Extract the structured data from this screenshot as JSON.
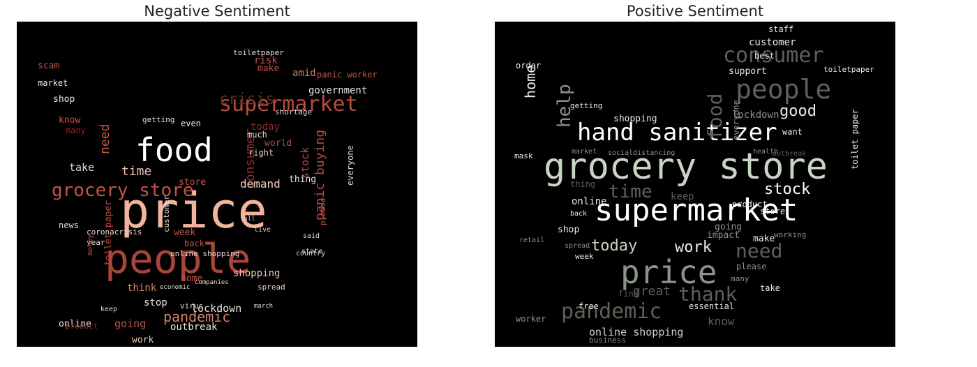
{
  "chart_data": [
    {
      "type": "wordcloud",
      "title": "Negative Sentiment",
      "background": "#000000",
      "palette": [
        "#f2b49a",
        "#d9826b",
        "#b94c3f",
        "#8c2f2a",
        "#6b2a26",
        "#e8d6cf"
      ],
      "words": [
        {
          "text": "price",
          "size": 70,
          "color": "#f2b49a"
        },
        {
          "text": "people",
          "size": 58,
          "color": "#a8453a"
        },
        {
          "text": "food",
          "size": 46,
          "color": "#ffffff"
        },
        {
          "text": "supermarket",
          "size": 30,
          "color": "#b94c3f"
        },
        {
          "text": "grocery store",
          "size": 26,
          "color": "#c0554a"
        },
        {
          "text": "pandemic",
          "size": 20,
          "color": "#d9826b"
        },
        {
          "text": "panic buying",
          "size": 18,
          "color": "#b94c3f"
        },
        {
          "text": "crisis",
          "size": 22,
          "color": "#5a2a26"
        },
        {
          "text": "consumer",
          "size": 18,
          "color": "#8c2f2a"
        },
        {
          "text": "need",
          "size": 18,
          "color": "#c0554a"
        },
        {
          "text": "time",
          "size": 18,
          "color": "#e8c0b0"
        },
        {
          "text": "demand",
          "size": 16,
          "color": "#f2d0c2"
        },
        {
          "text": "lockdown",
          "size": 15,
          "color": "#e8e0dc"
        },
        {
          "text": "shopping",
          "size": 14,
          "color": "#f0c8b4"
        },
        {
          "text": "government",
          "size": 14,
          "color": "#e8e0dc"
        },
        {
          "text": "going",
          "size": 15,
          "color": "#c0554a"
        },
        {
          "text": "stock",
          "size": 15,
          "color": "#b94c3f"
        },
        {
          "text": "take",
          "size": 15,
          "color": "#e8d6cf"
        },
        {
          "text": "online",
          "size": 13,
          "color": "#f0e8e4"
        },
        {
          "text": "outbreak",
          "size": 14,
          "color": "#f0e8e4"
        },
        {
          "text": "work",
          "size": 13,
          "color": "#f0c8b4"
        },
        {
          "text": "stop",
          "size": 14,
          "color": "#f0e8e4"
        },
        {
          "text": "think",
          "size": 14,
          "color": "#d9826b"
        },
        {
          "text": "home",
          "size": 13,
          "color": "#c0554a"
        },
        {
          "text": "week",
          "size": 13,
          "color": "#c0554a"
        },
        {
          "text": "back",
          "size": 12,
          "color": "#c0554a"
        },
        {
          "text": "customer",
          "size": 11,
          "color": "#e8d6cf"
        },
        {
          "text": "online shopping",
          "size": 11,
          "color": "#e8d6cf"
        },
        {
          "text": "spread",
          "size": 11,
          "color": "#e8d6cf"
        },
        {
          "text": "thing",
          "size": 13,
          "color": "#e8e0dc"
        },
        {
          "text": "today",
          "size": 14,
          "color": "#8c2f2a"
        },
        {
          "text": "world",
          "size": 13,
          "color": "#b94c3f"
        },
        {
          "text": "right",
          "size": 12,
          "color": "#e8d6cf"
        },
        {
          "text": "much",
          "size": 12,
          "color": "#e8d6cf"
        },
        {
          "text": "store",
          "size": 13,
          "color": "#c0554a"
        },
        {
          "text": "even",
          "size": 12,
          "color": "#f0e8e4"
        },
        {
          "text": "getting",
          "size": 11,
          "color": "#e8d6cf"
        },
        {
          "text": "shortage",
          "size": 11,
          "color": "#e8d6cf"
        },
        {
          "text": "toilet paper",
          "size": 13,
          "color": "#b94c3f"
        },
        {
          "text": "coronacrisis",
          "size": 11,
          "color": "#e8d6cf"
        },
        {
          "text": "news",
          "size": 12,
          "color": "#e8d6cf"
        },
        {
          "text": "year",
          "size": 11,
          "color": "#e8d6cf"
        },
        {
          "text": "money",
          "size": 10,
          "color": "#c0554a"
        },
        {
          "text": "shop",
          "size": 13,
          "color": "#f0e8e4"
        },
        {
          "text": "know",
          "size": 13,
          "color": "#c0554a"
        },
        {
          "text": "many",
          "size": 12,
          "color": "#8c2f2a"
        },
        {
          "text": "scam",
          "size": 13,
          "color": "#c0554a"
        },
        {
          "text": "market",
          "size": 12,
          "color": "#f0e8e4"
        },
        {
          "text": "risk",
          "size": 14,
          "color": "#c0554a"
        },
        {
          "text": "amid",
          "size": 14,
          "color": "#d9826b"
        },
        {
          "text": "make",
          "size": 13,
          "color": "#c0554a"
        },
        {
          "text": "panic worker",
          "size": 12,
          "color": "#c0554a"
        },
        {
          "text": "toiletpaper",
          "size": 11,
          "color": "#e8e0dc"
        },
        {
          "text": "everyone",
          "size": 12,
          "color": "#e8d6cf"
        },
        {
          "text": "please",
          "size": 11,
          "color": "#c0554a"
        },
        {
          "text": "said",
          "size": 10,
          "color": "#e8d6cf"
        },
        {
          "text": "state",
          "size": 10,
          "color": "#e8d6cf"
        },
        {
          "text": "country",
          "size": 10,
          "color": "#e8d6cf"
        },
        {
          "text": "live",
          "size": 10,
          "color": "#f0c8b4"
        },
        {
          "text": "full",
          "size": 9,
          "color": "#e8d6cf"
        },
        {
          "text": "product",
          "size": 11,
          "color": "#8c2f2a"
        },
        {
          "text": "virus",
          "size": 11,
          "color": "#e8d6cf"
        },
        {
          "text": "keep",
          "size": 10,
          "color": "#e8d6cf"
        },
        {
          "text": "economic",
          "size": 9,
          "color": "#e8d6cf"
        },
        {
          "text": "companies",
          "size": 9,
          "color": "#e8d6cf"
        },
        {
          "text": "march",
          "size": 9,
          "color": "#e8d6cf"
        }
      ]
    },
    {
      "type": "wordcloud",
      "title": "Positive Sentiment",
      "background": "#000000",
      "palette": [
        "#ffffff",
        "#e8eee4",
        "#c8d4c4",
        "#8a9488",
        "#5a6258"
      ],
      "words": [
        {
          "text": "grocery store",
          "size": 52,
          "color": "#c8d4c4"
        },
        {
          "text": "supermarket",
          "size": 44,
          "color": "#ffffff"
        },
        {
          "text": "price",
          "size": 46,
          "color": "#8a9488"
        },
        {
          "text": "hand sanitizer",
          "size": 34,
          "color": "#ffffff"
        },
        {
          "text": "people",
          "size": 38,
          "color": "#5a6258"
        },
        {
          "text": "consumer",
          "size": 30,
          "color": "#5a6258"
        },
        {
          "text": "pandemic",
          "size": 30,
          "color": "#5a6258"
        },
        {
          "text": "help",
          "size": 26,
          "color": "#8a9488"
        },
        {
          "text": "food",
          "size": 28,
          "color": "#5a6258"
        },
        {
          "text": "time",
          "size": 26,
          "color": "#5a6258"
        },
        {
          "text": "thank",
          "size": 28,
          "color": "#5a6258"
        },
        {
          "text": "need",
          "size": 28,
          "color": "#5a6258"
        },
        {
          "text": "good",
          "size": 22,
          "color": "#e8eee4"
        },
        {
          "text": "home",
          "size": 20,
          "color": "#e8eee4"
        },
        {
          "text": "stock",
          "size": 22,
          "color": "#ffffff"
        },
        {
          "text": "today",
          "size": 22,
          "color": "#c8d4c4"
        },
        {
          "text": "work",
          "size": 22,
          "color": "#e8eee4"
        },
        {
          "text": "online shopping",
          "size": 15,
          "color": "#c8d4c4"
        },
        {
          "text": "great",
          "size": 18,
          "color": "#5a6258"
        },
        {
          "text": "know",
          "size": 16,
          "color": "#5a6258"
        },
        {
          "text": "lockdown",
          "size": 14,
          "color": "#8a9488"
        },
        {
          "text": "customer",
          "size": 14,
          "color": "#e8eee4"
        },
        {
          "text": "support",
          "size": 13,
          "color": "#e8eee4"
        },
        {
          "text": "shopping",
          "size": 13,
          "color": "#e8eee4"
        },
        {
          "text": "online",
          "size": 14,
          "color": "#e8eee4"
        },
        {
          "text": "shop",
          "size": 13,
          "color": "#e8eee4"
        },
        {
          "text": "essential",
          "size": 12,
          "color": "#e8eee4"
        },
        {
          "text": "make",
          "size": 13,
          "color": "#e8eee4"
        },
        {
          "text": "going",
          "size": 13,
          "color": "#8a9488"
        },
        {
          "text": "impact",
          "size": 13,
          "color": "#8a9488"
        },
        {
          "text": "product",
          "size": 12,
          "color": "#e8eee4"
        },
        {
          "text": "keep",
          "size": 14,
          "color": "#5a6258"
        },
        {
          "text": "store",
          "size": 12,
          "color": "#e8eee4"
        },
        {
          "text": "want",
          "size": 12,
          "color": "#e8eee4"
        },
        {
          "text": "toilet paper",
          "size": 12,
          "color": "#e8eee4"
        },
        {
          "text": "everyone",
          "size": 12,
          "color": "#8a9488"
        },
        {
          "text": "order",
          "size": 12,
          "color": "#e8eee4"
        },
        {
          "text": "best",
          "size": 12,
          "color": "#e8eee4"
        },
        {
          "text": "staff",
          "size": 12,
          "color": "#e8eee4"
        },
        {
          "text": "toiletpaper",
          "size": 11,
          "color": "#e8eee4"
        },
        {
          "text": "mask",
          "size": 11,
          "color": "#e8eee4"
        },
        {
          "text": "week",
          "size": 11,
          "color": "#e8eee4"
        },
        {
          "text": "free",
          "size": 12,
          "color": "#e8eee4"
        },
        {
          "text": "worker",
          "size": 12,
          "color": "#8a9488"
        },
        {
          "text": "business",
          "size": 11,
          "color": "#8a9488"
        },
        {
          "text": "take",
          "size": 12,
          "color": "#e8eee4"
        },
        {
          "text": "many",
          "size": 11,
          "color": "#8a9488"
        },
        {
          "text": "please",
          "size": 12,
          "color": "#8a9488"
        },
        {
          "text": "working",
          "size": 11,
          "color": "#8a9488"
        },
        {
          "text": "getting",
          "size": 11,
          "color": "#e8eee4"
        },
        {
          "text": "thing",
          "size": 12,
          "color": "#5a6258"
        },
        {
          "text": "back",
          "size": 10,
          "color": "#e8eee4"
        },
        {
          "text": "retail",
          "size": 10,
          "color": "#8a9488"
        },
        {
          "text": "find",
          "size": 12,
          "color": "#5a6258"
        },
        {
          "text": "socialdistancing",
          "size": 10,
          "color": "#8a9488"
        },
        {
          "text": "health",
          "size": 10,
          "color": "#8a9488"
        },
        {
          "text": "outbreak",
          "size": 10,
          "color": "#5a6258"
        },
        {
          "text": "market",
          "size": 10,
          "color": "#8a9488"
        },
        {
          "text": "spread",
          "size": 10,
          "color": "#8a9488"
        }
      ]
    }
  ]
}
